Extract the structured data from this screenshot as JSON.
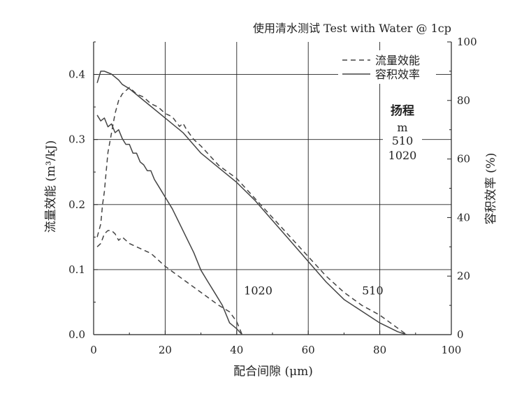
{
  "chart_data": {
    "type": "line",
    "title": "使用清水测试 Test with Water @ 1cp",
    "xlabel": "配合间隙 (μm)",
    "ylabel": "流量效能 (m³/kJ)",
    "y2label": "容积效率 (%)",
    "xlim": [
      0,
      100
    ],
    "ylim": [
      0,
      0.45
    ],
    "y2lim": [
      0,
      100
    ],
    "x_ticks": [
      "0",
      "20",
      "40",
      "60",
      "80",
      "100"
    ],
    "y_ticks": [
      "0.0",
      "0.1",
      "0.2",
      "0.3",
      "0.4"
    ],
    "y2_ticks": [
      "0",
      "20",
      "40",
      "60",
      "80",
      "100"
    ],
    "grid": true,
    "legend": {
      "position": "top-right",
      "entries": [
        {
          "label": "流量效能",
          "style": "dashed"
        },
        {
          "label": "容积效率",
          "style": "solid"
        }
      ]
    },
    "side_note": {
      "title": "扬程",
      "unit": "m",
      "values": [
        "510",
        "1020"
      ]
    },
    "annotations": [
      {
        "text": "1020",
        "x": 46,
        "y": 0.062
      },
      {
        "text": "510",
        "x": 78,
        "y": 0.062
      }
    ],
    "color": "#444444",
    "series": [
      {
        "name": "流量效能",
        "axis": "left",
        "style": "dashed",
        "head_m": "510",
        "x": [
          1,
          2,
          2.5,
          3,
          3.5,
          4,
          5,
          6,
          7,
          8,
          9,
          10,
          12,
          14,
          15,
          16,
          18,
          20,
          22,
          24,
          25,
          26,
          28,
          30,
          35,
          40,
          45,
          50,
          55,
          60,
          65,
          70,
          75,
          80,
          85,
          87.5
        ],
        "values": [
          0.15,
          0.17,
          0.2,
          0.22,
          0.25,
          0.28,
          0.31,
          0.34,
          0.36,
          0.37,
          0.375,
          0.38,
          0.37,
          0.365,
          0.36,
          0.355,
          0.35,
          0.34,
          0.335,
          0.32,
          0.325,
          0.315,
          0.3,
          0.29,
          0.26,
          0.24,
          0.21,
          0.18,
          0.15,
          0.12,
          0.09,
          0.065,
          0.045,
          0.03,
          0.01,
          0.0
        ]
      },
      {
        "name": "流量效能",
        "axis": "left",
        "style": "dashed",
        "head_m": "1020",
        "x": [
          1,
          2,
          3,
          4,
          5,
          6,
          7,
          8,
          10,
          12,
          14,
          16,
          18,
          20,
          25,
          30,
          35,
          38,
          40,
          41.5
        ],
        "values": [
          0.135,
          0.14,
          0.155,
          0.16,
          0.16,
          0.155,
          0.145,
          0.15,
          0.14,
          0.135,
          0.13,
          0.125,
          0.115,
          0.105,
          0.085,
          0.065,
          0.045,
          0.035,
          0.02,
          0.0
        ]
      },
      {
        "name": "容积效率",
        "axis": "right",
        "style": "solid",
        "head_m": "510",
        "x": [
          1,
          2,
          3,
          4,
          5,
          6,
          7,
          8,
          10,
          15,
          20,
          25,
          30,
          35,
          40,
          45,
          50,
          55,
          60,
          65,
          70,
          75,
          80,
          85,
          87.5
        ],
        "values": [
          86,
          90,
          90,
          89.5,
          89,
          88,
          87,
          85.5,
          84,
          79,
          74,
          69,
          62,
          57,
          52,
          46,
          39,
          32,
          25,
          18,
          12,
          8,
          4,
          1,
          0
        ]
      },
      {
        "name": "容积效率",
        "axis": "right",
        "style": "solid",
        "head_m": "1020",
        "x": [
          1,
          2,
          3,
          4,
          5,
          6,
          7,
          8,
          9,
          10,
          11,
          12,
          13,
          14,
          15,
          16,
          17,
          18,
          19,
          20,
          22,
          24,
          26,
          28,
          30,
          32,
          34,
          36,
          38,
          40,
          41.5
        ],
        "values": [
          75,
          73,
          74,
          71,
          72,
          69,
          70,
          67,
          65,
          65,
          62,
          62,
          59,
          58,
          56,
          56,
          53,
          51,
          49,
          47,
          43,
          38,
          33,
          28,
          22,
          18,
          14,
          10,
          4,
          2,
          0
        ]
      }
    ]
  }
}
